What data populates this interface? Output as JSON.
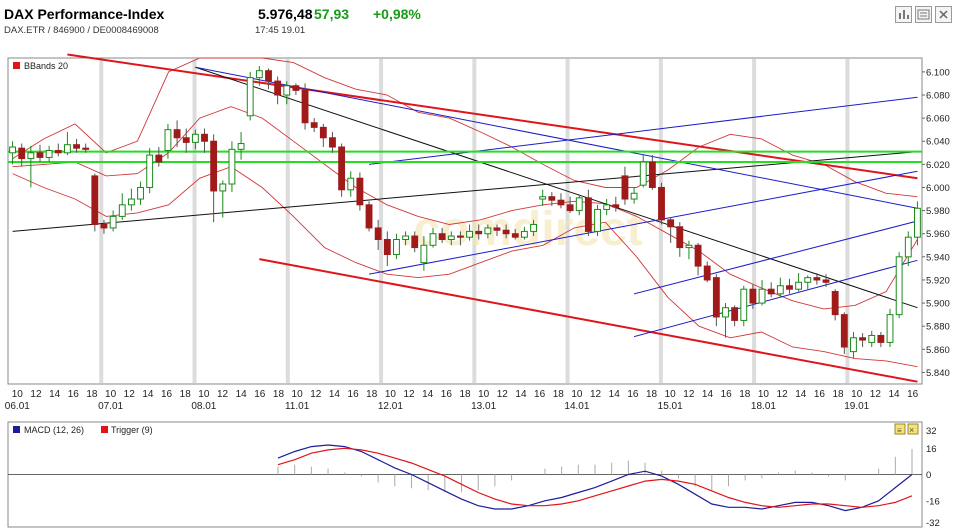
{
  "header": {
    "title": "DAX Performance-Index",
    "subtitle": "DAX.ETR  /  846900  /  DE0008469008",
    "price": "5.976,48",
    "change": "57,93",
    "change_pct": "+0,98%",
    "time": "17:45   19.01",
    "buttons": [
      "bar-chart-icon",
      "news-icon",
      "close-icon"
    ],
    "up_color": "#1a9a1a"
  },
  "chart_data": [
    {
      "type": "candlestick",
      "legend": "BBands 20",
      "ylim": [
        5830,
        6112
      ],
      "yticks": [
        "6.100",
        "6.080",
        "6.060",
        "6.040",
        "6.020",
        "6.000",
        "5.980",
        "5.960",
        "5.940",
        "5.920",
        "5.900",
        "5.880",
        "5.860",
        "5.840"
      ],
      "ytick_values": [
        6100,
        6080,
        6060,
        6040,
        6020,
        6000,
        5980,
        5960,
        5940,
        5920,
        5900,
        5880,
        5860,
        5840
      ],
      "hour_ticks": [
        "10",
        "12",
        "14",
        "16",
        "18",
        "10",
        "12",
        "14",
        "16",
        "18",
        "10",
        "12",
        "14",
        "16",
        "18",
        "10",
        "12",
        "14",
        "16",
        "18",
        "10",
        "12",
        "14",
        "16",
        "18",
        "10",
        "12",
        "14",
        "16",
        "18",
        "10",
        "12",
        "14",
        "16",
        "18",
        "10",
        "12",
        "14",
        "16",
        "18",
        "10",
        "12",
        "14",
        "16",
        "18",
        "10",
        "12",
        "14",
        "16"
      ],
      "day_labels": [
        {
          "label": "06.01",
          "slot": 0
        },
        {
          "label": "07.01",
          "slot": 5
        },
        {
          "label": "08.01",
          "slot": 10
        },
        {
          "label": "11.01",
          "slot": 15
        },
        {
          "label": "12.01",
          "slot": 20
        },
        {
          "label": "13.01",
          "slot": 25
        },
        {
          "label": "14.01",
          "slot": 30
        },
        {
          "label": "15.01",
          "slot": 35
        },
        {
          "label": "18.01",
          "slot": 40
        },
        {
          "label": "19.01",
          "slot": 45
        }
      ],
      "candles": [
        [
          6030,
          6040,
          6020,
          6035
        ],
        [
          6034,
          6038,
          6018,
          6025
        ],
        [
          6025,
          6036,
          6000,
          6030
        ],
        [
          6030,
          6037,
          6022,
          6026
        ],
        [
          6026,
          6036,
          6022,
          6032
        ],
        [
          6032,
          6038,
          6027,
          6030
        ],
        [
          6030,
          6048,
          6028,
          6037
        ],
        [
          6037,
          6042,
          6030,
          6034
        ],
        [
          6034,
          6038,
          6030,
          6033
        ],
        [
          6010,
          6012,
          5962,
          5968
        ],
        [
          5968,
          5972,
          5960,
          5965
        ],
        [
          5965,
          5980,
          5962,
          5975
        ],
        [
          5975,
          5995,
          5972,
          5985
        ],
        [
          5985,
          5999,
          5980,
          5990
        ],
        [
          5990,
          6005,
          5985,
          6000
        ],
        [
          6000,
          6034,
          5995,
          6028
        ],
        [
          6028,
          6035,
          6018,
          6022
        ],
        [
          6032,
          6055,
          6025,
          6050
        ],
        [
          6050,
          6058,
          6035,
          6043
        ],
        [
          6043,
          6051,
          6030,
          6039
        ],
        [
          6039,
          6050,
          6033,
          6046
        ],
        [
          6046,
          6051,
          6030,
          6040
        ],
        [
          6040,
          6046,
          5970,
          5997
        ],
        [
          5997,
          6006,
          5974,
          6003
        ],
        [
          6003,
          6040,
          5996,
          6033
        ],
        [
          6033,
          6048,
          6024,
          6038
        ],
        [
          6062,
          6100,
          6058,
          6095
        ],
        [
          6095,
          6105,
          6088,
          6101
        ],
        [
          6101,
          6103,
          6085,
          6092
        ],
        [
          6092,
          6096,
          6072,
          6080
        ],
        [
          6080,
          6092,
          6072,
          6088
        ],
        [
          6088,
          6090,
          6080,
          6084
        ],
        [
          6084,
          6090,
          6050,
          6056
        ],
        [
          6056,
          6060,
          6048,
          6052
        ],
        [
          6052,
          6055,
          6035,
          6043
        ],
        [
          6043,
          6048,
          6030,
          6035
        ],
        [
          6035,
          6038,
          5992,
          5998
        ],
        [
          5998,
          6014,
          5992,
          6008
        ],
        [
          6008,
          6013,
          5980,
          5985
        ],
        [
          5985,
          5988,
          5962,
          5965
        ],
        [
          5965,
          5972,
          5946,
          5955
        ],
        [
          5955,
          5962,
          5932,
          5942
        ],
        [
          5942,
          5960,
          5938,
          5955
        ],
        [
          5955,
          5962,
          5950,
          5958
        ],
        [
          5958,
          5962,
          5944,
          5948
        ],
        [
          5935,
          5958,
          5928,
          5950
        ],
        [
          5950,
          5965,
          5948,
          5960
        ],
        [
          5960,
          5965,
          5952,
          5955
        ],
        [
          5955,
          5962,
          5950,
          5958
        ],
        [
          5958,
          5962,
          5950,
          5957
        ],
        [
          5957,
          5968,
          5954,
          5962
        ],
        [
          5962,
          5968,
          5955,
          5960
        ],
        [
          5960,
          5968,
          5956,
          5965
        ],
        [
          5965,
          5968,
          5958,
          5963
        ],
        [
          5963,
          5968,
          5956,
          5960
        ],
        [
          5960,
          5964,
          5955,
          5957
        ],
        [
          5957,
          5966,
          5955,
          5962
        ],
        [
          5962,
          5972,
          5958,
          5968
        ],
        [
          5990,
          5998,
          5984,
          5992
        ],
        [
          5992,
          5996,
          5984,
          5989
        ],
        [
          5989,
          5995,
          5982,
          5985
        ],
        [
          5985,
          5992,
          5978,
          5980
        ],
        [
          5980,
          5994,
          5976,
          5991
        ],
        [
          5991,
          5998,
          5958,
          5962
        ],
        [
          5962,
          5985,
          5958,
          5981
        ],
        [
          5981,
          5990,
          5976,
          5985
        ],
        [
          5985,
          5992,
          5979,
          5983
        ],
        [
          6010,
          6018,
          5985,
          5990
        ],
        [
          5990,
          6000,
          5986,
          5995
        ],
        [
          6002,
          6028,
          6000,
          6022
        ],
        [
          6022,
          6028,
          5998,
          6000
        ],
        [
          6000,
          6004,
          5968,
          5972
        ],
        [
          5972,
          5974,
          5952,
          5966
        ],
        [
          5966,
          5970,
          5940,
          5948
        ],
        [
          5948,
          5954,
          5938,
          5950
        ],
        [
          5950,
          5952,
          5924,
          5932
        ],
        [
          5932,
          5936,
          5918,
          5920
        ],
        [
          5922,
          5925,
          5880,
          5888
        ],
        [
          5888,
          5900,
          5870,
          5896
        ],
        [
          5896,
          5898,
          5880,
          5885
        ],
        [
          5885,
          5915,
          5880,
          5912
        ],
        [
          5912,
          5916,
          5895,
          5900
        ],
        [
          5900,
          5920,
          5898,
          5912
        ],
        [
          5912,
          5918,
          5905,
          5908
        ],
        [
          5908,
          5922,
          5905,
          5915
        ],
        [
          5915,
          5921,
          5908,
          5912
        ],
        [
          5912,
          5926,
          5910,
          5918
        ],
        [
          5918,
          5924,
          5912,
          5922
        ],
        [
          5922,
          5926,
          5916,
          5920
        ],
        [
          5920,
          5925,
          5914,
          5918
        ],
        [
          5910,
          5912,
          5885,
          5890
        ],
        [
          5890,
          5892,
          5856,
          5862
        ],
        [
          5858,
          5875,
          5852,
          5870
        ],
        [
          5870,
          5874,
          5862,
          5868
        ],
        [
          5866,
          5876,
          5862,
          5872
        ],
        [
          5872,
          5875,
          5862,
          5866
        ],
        [
          5866,
          5895,
          5862,
          5890
        ],
        [
          5890,
          5944,
          5887,
          5940
        ],
        [
          5940,
          5962,
          5932,
          5957
        ],
        [
          5957,
          5988,
          5950,
          5982
        ]
      ],
      "bb_upper": [
        6025,
        6042,
        6055,
        6030,
        6040,
        6100,
        6112,
        6112,
        6112,
        6108,
        6095,
        6085,
        6080,
        6065,
        6060,
        6048,
        6035,
        6020,
        6006,
        6000,
        6000,
        6015,
        6035,
        6046,
        6042,
        6028,
        6020,
        6005,
        5995,
        5992
      ],
      "bb_mid": [
        6018,
        6020,
        6022,
        6010,
        6012,
        6030,
        6060,
        6070,
        6060,
        6040,
        6020,
        6000,
        5985,
        5975,
        5968,
        5972,
        5980,
        5985,
        5988,
        5986,
        5975,
        5960,
        5945,
        5925,
        5913,
        5902,
        5895,
        5898,
        5910,
        5955
      ],
      "bb_lower": [
        6012,
        6000,
        5990,
        5975,
        5978,
        5985,
        6008,
        6018,
        6000,
        5975,
        5948,
        5935,
        5925,
        5922,
        5925,
        5935,
        5945,
        5950,
        5965,
        5970,
        5940,
        5905,
        5880,
        5870,
        5875,
        5862,
        5858,
        5852,
        5850,
        5845
      ],
      "horizontal_lines": [
        6031,
        6022
      ],
      "trendlines": [
        {
          "color": "#e0151b",
          "points": [
            [
              6,
              6115
            ],
            [
              99,
              6008
            ]
          ]
        },
        {
          "color": "#e0151b",
          "points": [
            [
              27,
              5938
            ],
            [
              99,
              5832
            ]
          ]
        },
        {
          "color": "#111111",
          "points": [
            [
              0,
              5962
            ],
            [
              99,
              6031
            ]
          ]
        },
        {
          "color": "#111111",
          "points": [
            [
              20,
              6104
            ],
            [
              99,
              5896
            ]
          ]
        },
        {
          "color": "#1c1cc8",
          "points": [
            [
              20,
              6104
            ],
            [
              99,
              5982
            ]
          ]
        },
        {
          "color": "#1c1cc8",
          "points": [
            [
              39,
              6020
            ],
            [
              99,
              6078
            ]
          ]
        },
        {
          "color": "#1c1cc8",
          "points": [
            [
              39,
              5925
            ],
            [
              99,
              6014
            ]
          ]
        },
        {
          "color": "#1c1cc8",
          "points": [
            [
              68,
              5908
            ],
            [
              99,
              5971
            ]
          ]
        },
        {
          "color": "#1c1cc8",
          "points": [
            [
              68,
              5871
            ],
            [
              99,
              5937
            ]
          ]
        }
      ]
    },
    {
      "type": "line",
      "legend": [
        "MACD (12, 26)",
        "Trigger (9)"
      ],
      "ylim": [
        -32,
        32
      ],
      "yticks": [
        "32",
        "16",
        "0",
        "-16",
        "-32"
      ],
      "ytick_values": [
        32,
        16,
        0,
        -16,
        -32
      ],
      "macd": [
        10,
        14,
        17,
        18,
        17,
        14,
        9,
        4,
        0,
        -5,
        -10,
        -15,
        -19,
        -21,
        -21,
        -19,
        -16,
        -14,
        -11,
        -8,
        -4,
        0,
        2,
        -1,
        -6,
        -12,
        -18,
        -20,
        -20,
        -21,
        -19,
        -17,
        -17,
        -19,
        -22,
        -20,
        -16,
        -8,
        0
      ],
      "trigger": [
        6,
        9,
        13,
        15,
        16,
        15,
        13,
        10,
        7,
        3,
        -1,
        -6,
        -11,
        -15,
        -18,
        -19,
        -19,
        -18,
        -16,
        -13,
        -10,
        -7,
        -4,
        -3,
        -4,
        -6,
        -10,
        -14,
        -17,
        -19,
        -20,
        -19,
        -18,
        -18,
        -19,
        -20,
        -19,
        -17,
        -13
      ]
    }
  ]
}
